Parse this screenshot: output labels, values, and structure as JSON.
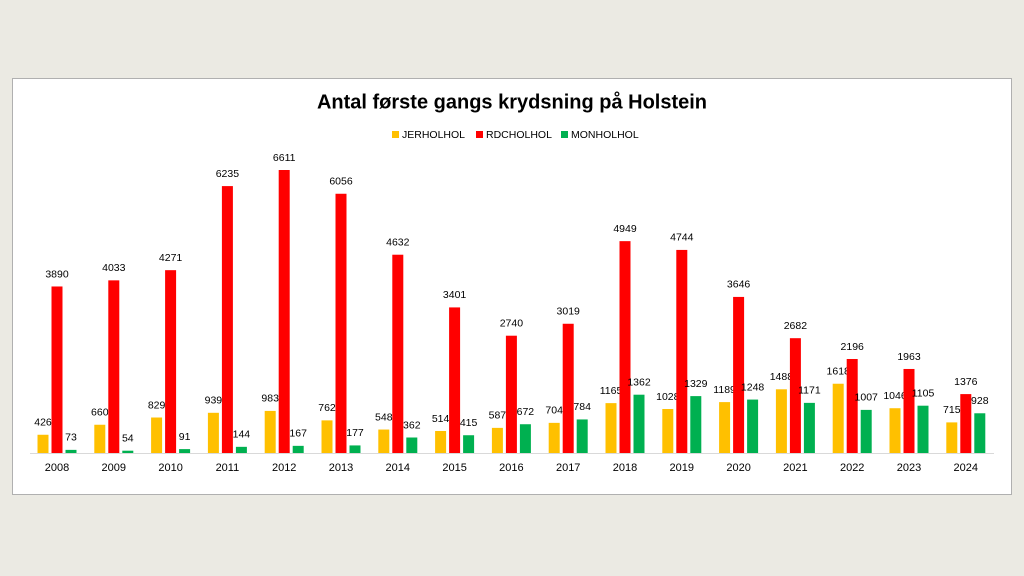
{
  "chart_data": {
    "type": "bar",
    "title": "Antal første gangs krydsning på Holstein",
    "categories": [
      "2008",
      "2009",
      "2010",
      "2011",
      "2012",
      "2013",
      "2014",
      "2015",
      "2016",
      "2017",
      "2018",
      "2019",
      "2020",
      "2021",
      "2022",
      "2023",
      "2024"
    ],
    "series": [
      {
        "name": "JERHOLHOL",
        "color": "#ffc000",
        "values": [
          426,
          660,
          829,
          939,
          983,
          762,
          548,
          514,
          587,
          704,
          1165,
          1028,
          1189,
          1488,
          1618,
          1046,
          715
        ]
      },
      {
        "name": "RDCHOLHOL",
        "color": "#ff0000",
        "values": [
          3890,
          4033,
          4271,
          6235,
          6611,
          6056,
          4632,
          3401,
          2740,
          3019,
          4949,
          4744,
          3646,
          2682,
          2196,
          1963,
          1376
        ]
      },
      {
        "name": "MONHOLHOL",
        "color": "#00b050",
        "values": [
          73,
          54,
          91,
          144,
          167,
          177,
          362,
          415,
          672,
          784,
          1362,
          1329,
          1248,
          1171,
          1007,
          1105,
          928
        ]
      }
    ],
    "legend": "top"
  }
}
